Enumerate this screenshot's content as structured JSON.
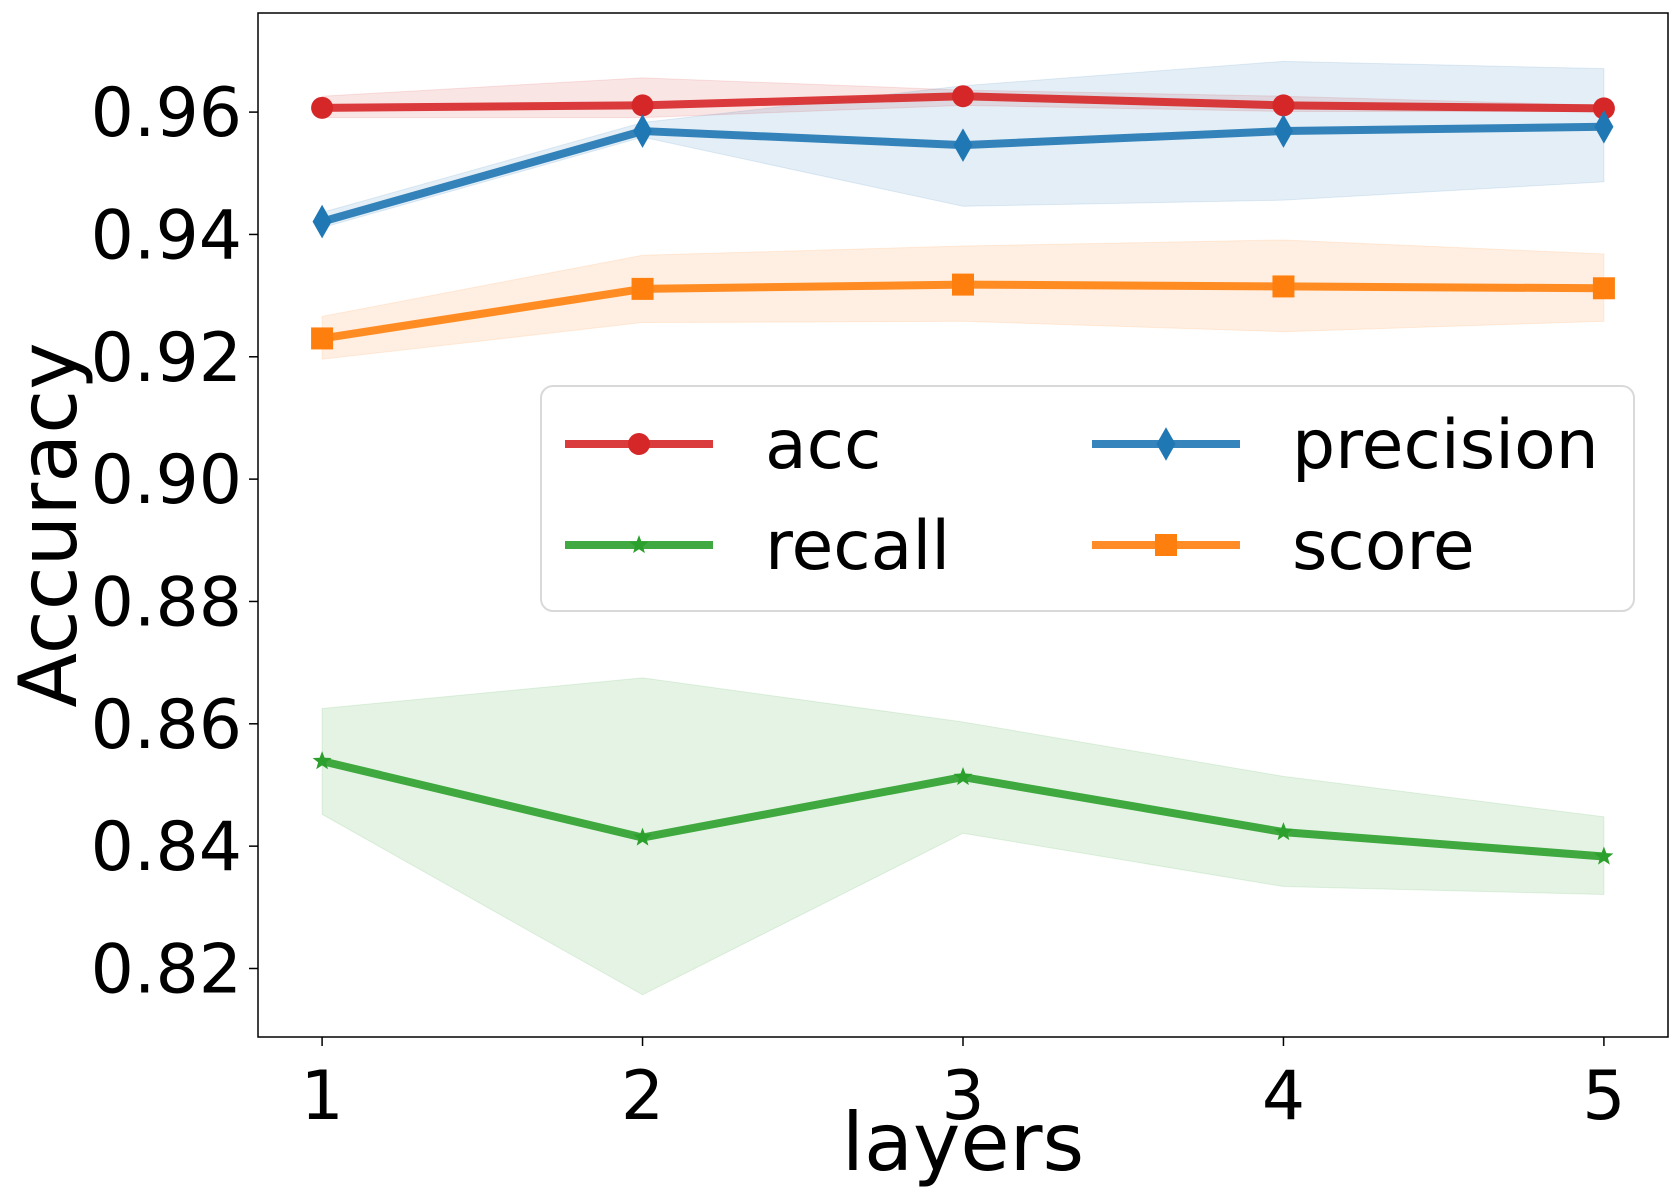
{
  "chart_data": {
    "type": "line",
    "xlabel": "layers",
    "ylabel": "Accuracy",
    "x": [
      1,
      2,
      3,
      4,
      5
    ],
    "xticks": [
      "1",
      "2",
      "3",
      "4",
      "5"
    ],
    "xlim": [
      0.8,
      5.2
    ],
    "ylim": [
      0.8088,
      0.9762
    ],
    "yticks": [
      "0.82",
      "0.84",
      "0.86",
      "0.88",
      "0.90",
      "0.92",
      "0.94",
      "0.96"
    ],
    "grid": false,
    "legend": {
      "placement": "center-right",
      "columns": 2
    },
    "series": [
      {
        "name": "acc",
        "color": "#d62728",
        "marker": "circle",
        "values": [
          0.9607,
          0.9611,
          0.9626,
          0.9611,
          0.9606
        ],
        "upper": [
          0.9626,
          0.9656,
          0.9636,
          0.9626,
          0.9611
        ],
        "lower": [
          0.9591,
          0.9591,
          0.9611,
          0.9601,
          0.9601
        ]
      },
      {
        "name": "precision",
        "color": "#1f77b4",
        "marker": "diamond",
        "values": [
          0.9421,
          0.9569,
          0.9546,
          0.9569,
          0.9576
        ],
        "upper": [
          0.9436,
          0.9583,
          0.9643,
          0.9683,
          0.9671
        ],
        "lower": [
          0.9411,
          0.9559,
          0.9446,
          0.9456,
          0.9486
        ]
      },
      {
        "name": "recall",
        "color": "#2ca02c",
        "marker": "star",
        "values": [
          0.8539,
          0.8414,
          0.8513,
          0.8423,
          0.8383
        ],
        "upper": [
          0.8625,
          0.8675,
          0.8603,
          0.8514,
          0.8448
        ],
        "lower": [
          0.8452,
          0.8157,
          0.8421,
          0.8334,
          0.8321
        ]
      },
      {
        "name": "score",
        "color": "#ff7f0e",
        "marker": "square",
        "values": [
          0.923,
          0.9311,
          0.9318,
          0.9315,
          0.9312
        ],
        "upper": [
          0.9266,
          0.9366,
          0.9381,
          0.9391,
          0.9368
        ],
        "lower": [
          0.9196,
          0.9256,
          0.9258,
          0.9241,
          0.9258
        ]
      }
    ]
  }
}
